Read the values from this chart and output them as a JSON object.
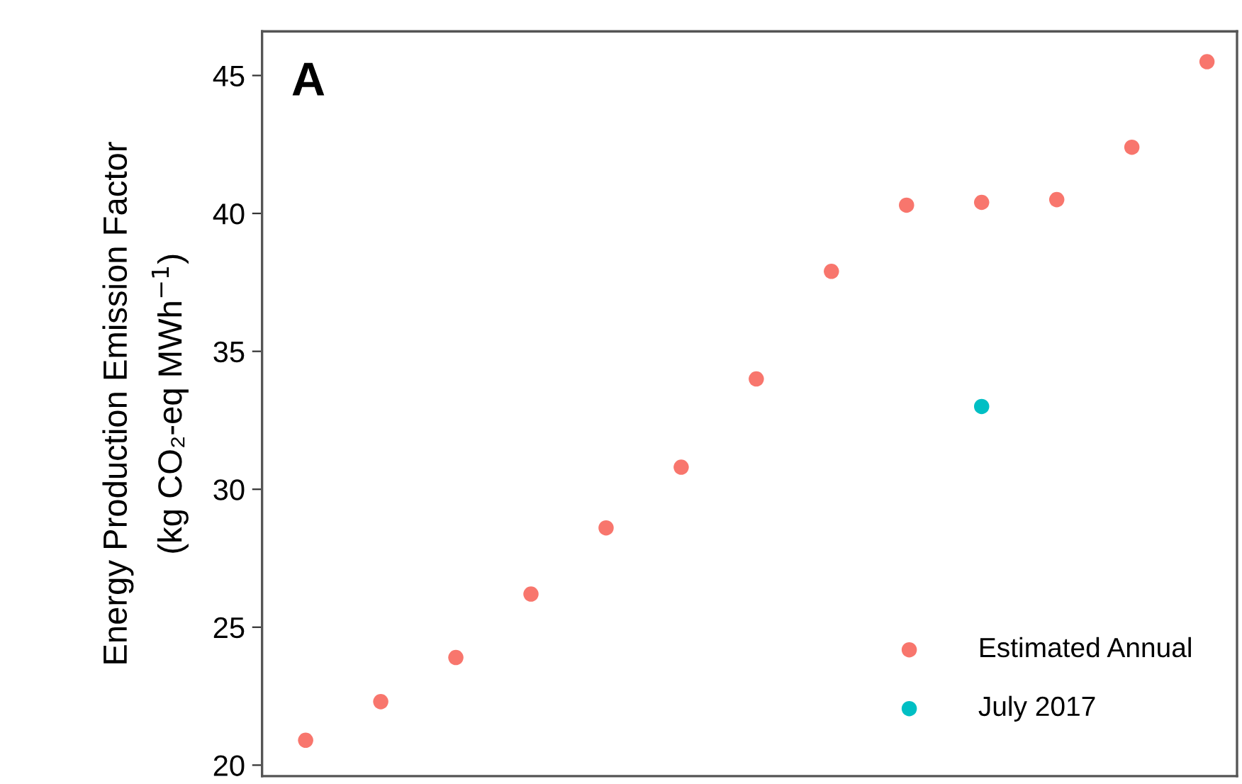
{
  "chart_data": {
    "type": "scatter",
    "ylabel": "Energy Production Emission Factor\n(kg CO₂-eq MWh$^{−1}$)",
    "annotations": [
      "A"
    ],
    "categories": [
      null,
      null,
      null,
      null,
      null,
      null,
      null,
      null,
      null,
      null,
      null,
      null,
      null
    ],
    "series": [
      {
        "name": "Estimated Annual",
        "color": "#f8766d",
        "values": [
          20.9,
          22.3,
          23.9,
          26.2,
          28.6,
          30.8,
          34.0,
          37.9,
          40.3,
          40.4,
          40.5,
          42.4,
          45.5
        ]
      },
      {
        "name": "July 2017",
        "color": "#00bfc4",
        "values": [
          null,
          null,
          null,
          null,
          null,
          null,
          null,
          null,
          null,
          33.0,
          null,
          null,
          null
        ]
      }
    ],
    "ylim": [
      19.6,
      46.6
    ],
    "yticks": [
      20,
      25,
      30,
      35,
      40,
      45
    ],
    "tick_labels": "y",
    "legend": "bottom right",
    "marker": "circle",
    "grid": false
  }
}
